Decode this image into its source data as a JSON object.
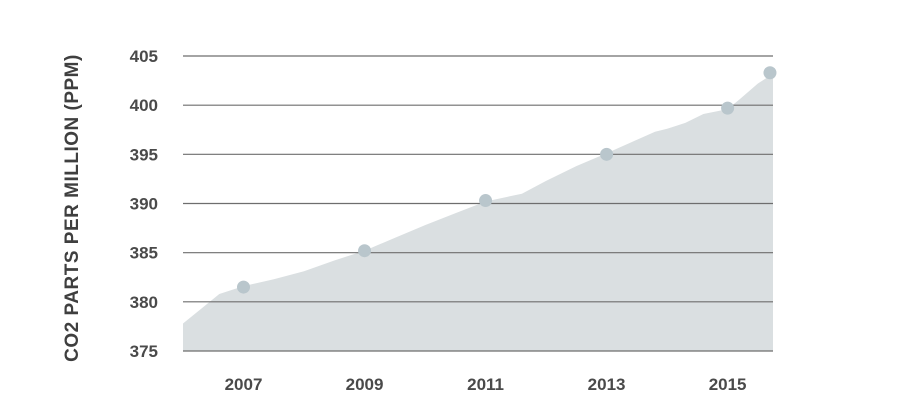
{
  "chart_data": {
    "type": "area",
    "title": "",
    "xlabel": "",
    "ylabel": "CO2 PARTS PER MILLION (PPM)",
    "xlim": [
      2006.0,
      2015.75
    ],
    "ylim": [
      375,
      405
    ],
    "y_ticks": [
      375,
      380,
      385,
      390,
      395,
      400,
      405
    ],
    "x_ticks": [
      2007,
      2009,
      2011,
      2013,
      2015
    ],
    "y_tick_labels": [
      "375",
      "380",
      "385",
      "390",
      "395",
      "400",
      "405"
    ],
    "x_tick_labels": [
      "2007",
      "2009",
      "2011",
      "2013",
      "2015"
    ],
    "grid": true,
    "area_series": {
      "x": [
        2006.0,
        2006.3,
        2006.6,
        2007.0,
        2007.5,
        2008.0,
        2008.5,
        2009.0,
        2009.5,
        2010.0,
        2010.5,
        2011.0,
        2011.6,
        2012.0,
        2012.5,
        2013.0,
        2013.4,
        2013.8,
        2014.0,
        2014.3,
        2014.6,
        2015.0,
        2015.2,
        2015.5,
        2015.75
      ],
      "values": [
        377.8,
        379.3,
        380.8,
        381.6,
        382.3,
        383.1,
        384.2,
        385.2,
        386.5,
        387.8,
        389.0,
        390.2,
        391.0,
        392.3,
        393.8,
        395.1,
        396.2,
        397.3,
        397.6,
        398.2,
        399.1,
        399.6,
        400.6,
        402.2,
        403.2
      ]
    },
    "points": {
      "x": [
        2007,
        2009,
        2011,
        2013,
        2015,
        2015.7
      ],
      "values": [
        381.5,
        385.2,
        390.3,
        395.0,
        399.7,
        403.3
      ]
    },
    "colors": {
      "area_fill": "#dadfe1",
      "point_fill": "#b9c6cc",
      "grid": "#6e6e6e",
      "text": "#4a4a4a"
    }
  }
}
